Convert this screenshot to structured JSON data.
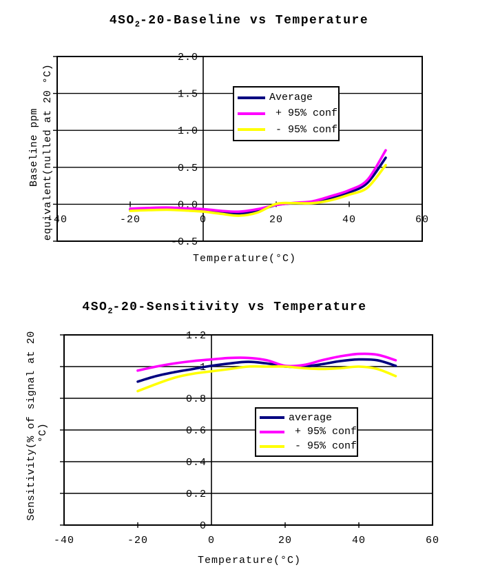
{
  "chart_data": [
    {
      "type": "line",
      "title": "4SO2-20-Baseline vs Temperature",
      "title_parts": {
        "prefix": "4SO",
        "sub": "2",
        "suffix": "-20-Baseline vs Temperature"
      },
      "xlabel": "Temperature(°C)",
      "ylabel_lines": [
        "Baseline ppm",
        "equivalent(nulled at 20 °C)"
      ],
      "xlim": [
        -40,
        60
      ],
      "ylim": [
        -0.5,
        2.0
      ],
      "x_ticks": [
        -40,
        -20,
        0,
        20,
        40,
        60
      ],
      "y_ticks": [
        {
          "v": 2.0,
          "label": "2.0"
        },
        {
          "v": 1.5,
          "label": "1.5"
        },
        {
          "v": 1.0,
          "label": "1.0"
        },
        {
          "v": 0.5,
          "label": "0.5"
        },
        {
          "v": 0.0,
          "label": "0.0"
        },
        {
          "v": -0.5,
          "label": "-0.5"
        }
      ],
      "grid": "horizontal",
      "legend_position": "upper-center",
      "x": [
        -20,
        -15,
        -10,
        -5,
        0,
        5,
        10,
        15,
        20,
        25,
        30,
        35,
        40,
        45,
        50
      ],
      "series": [
        {
          "name": "Average",
          "color": "#000080",
          "values": [
            -0.075,
            -0.065,
            -0.06,
            -0.07,
            -0.085,
            -0.11,
            -0.125,
            -0.085,
            -0.01,
            0.015,
            0.03,
            0.085,
            0.16,
            0.29,
            0.63
          ]
        },
        {
          "name": "+ 95% conf",
          "color": "#FF00FF",
          "values": [
            -0.06,
            -0.05,
            -0.045,
            -0.055,
            -0.065,
            -0.09,
            -0.1,
            -0.065,
            -0.01,
            0.02,
            0.04,
            0.11,
            0.19,
            0.33,
            0.73
          ]
        },
        {
          "name": "- 95% conf",
          "color": "#FFFF00",
          "values": [
            -0.09,
            -0.08,
            -0.075,
            -0.085,
            -0.1,
            -0.13,
            -0.155,
            -0.11,
            0.005,
            0.015,
            0.015,
            0.055,
            0.13,
            0.225,
            0.53
          ]
        }
      ]
    },
    {
      "type": "line",
      "title": "4SO2-20-Sensitivity vs Temperature",
      "title_parts": {
        "prefix": "4SO",
        "sub": "2",
        "suffix": "-20-Sensitivity vs Temperature"
      },
      "xlabel": "Temperature(°C)",
      "ylabel_lines": [
        "Sensitivity(% of signal at 20",
        "°C)"
      ],
      "xlim": [
        -40,
        60
      ],
      "ylim": [
        0,
        1.2
      ],
      "x_ticks": [
        -40,
        -20,
        0,
        20,
        40,
        60
      ],
      "y_ticks": [
        {
          "v": 1.2,
          "label": "1.2"
        },
        {
          "v": 1.0,
          "label": "1"
        },
        {
          "v": 0.8,
          "label": "0.8"
        },
        {
          "v": 0.6,
          "label": "0.6"
        },
        {
          "v": 0.4,
          "label": "0.4"
        },
        {
          "v": 0.2,
          "label": "0.2"
        },
        {
          "v": 0.0,
          "label": "0"
        }
      ],
      "grid": "horizontal",
      "legend_position": "middle-right",
      "x": [
        -20,
        -15,
        -10,
        -5,
        0,
        5,
        10,
        15,
        20,
        25,
        30,
        35,
        40,
        45,
        50
      ],
      "series": [
        {
          "name": "average",
          "color": "#000080",
          "values": [
            0.905,
            0.94,
            0.965,
            0.985,
            1.005,
            1.02,
            1.03,
            1.02,
            1.0,
            1.0,
            1.015,
            1.035,
            1.045,
            1.04,
            1.005
          ]
        },
        {
          "name": "+ 95% conf",
          "color": "#FF00FF",
          "values": [
            0.975,
            1.0,
            1.02,
            1.035,
            1.045,
            1.055,
            1.055,
            1.04,
            1.005,
            1.01,
            1.04,
            1.065,
            1.08,
            1.075,
            1.04
          ]
        },
        {
          "name": "- 95% conf",
          "color": "#FFFF00",
          "values": [
            0.845,
            0.89,
            0.93,
            0.955,
            0.97,
            0.985,
            1.0,
            1.0,
            1.0,
            0.99,
            0.985,
            0.99,
            1.0,
            0.985,
            0.94
          ]
        }
      ]
    }
  ]
}
